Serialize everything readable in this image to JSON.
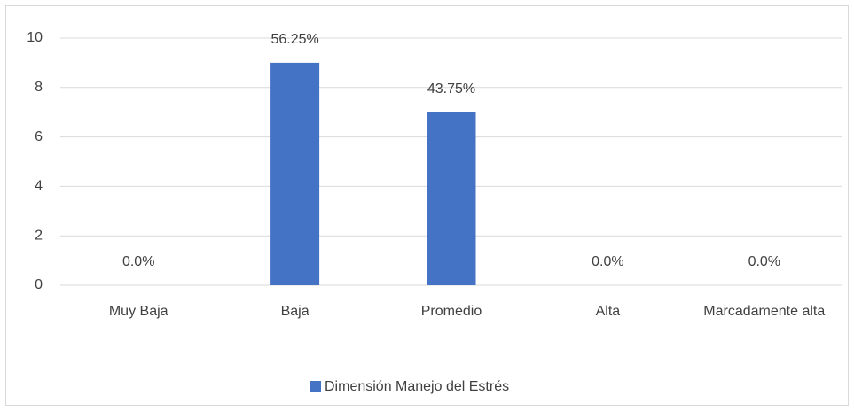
{
  "chart_data": {
    "type": "bar",
    "categories": [
      "Muy Baja",
      "Baja",
      "Promedio",
      "Alta",
      "Marcadamente alta"
    ],
    "series": [
      {
        "name": "Dimensión Manejo del Estrés",
        "color": "#4472c4",
        "values": [
          0,
          9,
          7,
          0,
          0
        ],
        "percent_labels": [
          "0.0%",
          "56.25%",
          "43.75%",
          "0.0%",
          "0.0%"
        ]
      }
    ],
    "ylim": [
      0,
      10
    ],
    "yticks": [
      0,
      2,
      4,
      6,
      8,
      10
    ],
    "grid": true,
    "legend": "bottom"
  }
}
